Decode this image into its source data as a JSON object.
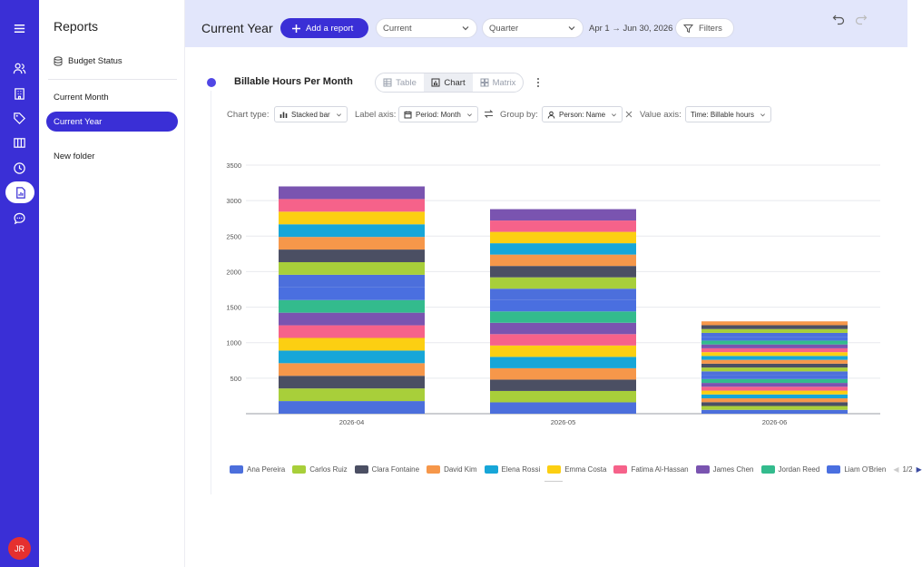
{
  "user": {
    "initials": "JR"
  },
  "rail": {
    "items": [
      {
        "icon": "menu-icon"
      },
      {
        "icon": "people-icon"
      },
      {
        "icon": "building-icon"
      },
      {
        "icon": "tag-icon"
      },
      {
        "icon": "board-icon"
      },
      {
        "icon": "clock-icon"
      },
      {
        "icon": "report-icon",
        "active": true
      },
      {
        "icon": "chat-icon"
      }
    ],
    "accent": "#3a2fd6"
  },
  "sidebar": {
    "title": "Reports",
    "budget_label": "Budget Status",
    "items": [
      {
        "label": "Current Month"
      },
      {
        "label": "Current Year",
        "active": true
      },
      {
        "label": "New folder"
      }
    ]
  },
  "header": {
    "title": "Current Year",
    "add_report_label": "Add a report",
    "period_value": "Current",
    "granularity_value": "Quarter",
    "date_range": "Apr 1 → Jun 30, 2026",
    "filters_label": "Filters"
  },
  "report": {
    "title": "Billable Hours Per Month",
    "view_tabs": [
      {
        "label": "Table",
        "icon": "table-icon"
      },
      {
        "label": "Chart",
        "icon": "chart-icon",
        "active": true
      },
      {
        "label": "Matrix",
        "icon": "matrix-icon"
      }
    ],
    "options": {
      "chart_type_label": "Chart type:",
      "chart_type_value": "Stacked bar",
      "label_axis_label": "Label axis:",
      "label_axis_value": "Period: Month",
      "group_by_label": "Group by:",
      "group_by_value": "Person: Name",
      "value_axis_label": "Value axis:",
      "value_axis_value": "Time: Billable hours"
    },
    "legend_page": "1/2"
  },
  "chart_data": {
    "type": "bar",
    "stacked": true,
    "categories": [
      "2026-04",
      "2026-05",
      "2026-06"
    ],
    "totals": [
      3200,
      2880,
      1300
    ],
    "y_ticks": [
      "500",
      "1000",
      "1500",
      "2000",
      "2500",
      "3000",
      "3500"
    ],
    "ylim": [
      0,
      3500
    ],
    "grid": true,
    "legend_position": "bottom",
    "series": [
      {
        "name": "Ana Pereira",
        "color": "#4c6fdc"
      },
      {
        "name": "Carlos Ruiz",
        "color": "#a8cf3a"
      },
      {
        "name": "Clara Fontaine",
        "color": "#4b4f63"
      },
      {
        "name": "David Kim",
        "color": "#f6974a"
      },
      {
        "name": "Elena Rossi",
        "color": "#17a6d8"
      },
      {
        "name": "Emma Costa",
        "color": "#fccf12"
      },
      {
        "name": "Fatima Al-Hassan",
        "color": "#f6628a"
      },
      {
        "name": "James Chen",
        "color": "#7a54b0"
      },
      {
        "name": "Jordan Reed",
        "color": "#33bb8d"
      },
      {
        "name": "Liam O'Brien",
        "color": "#4a6fe0"
      }
    ]
  }
}
